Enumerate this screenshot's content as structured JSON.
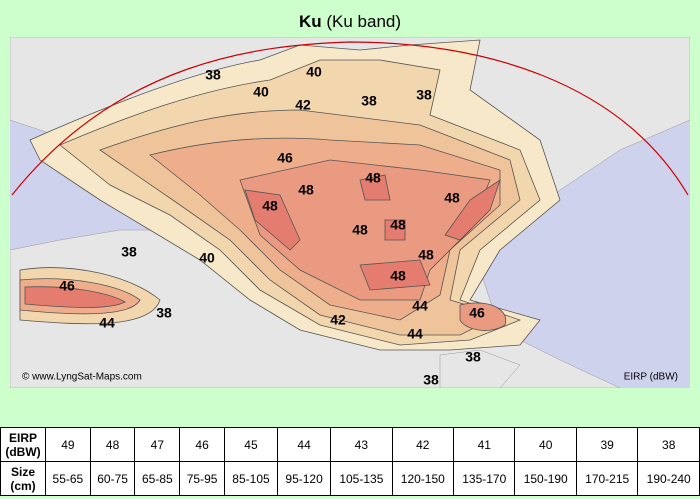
{
  "header": {
    "title_bold": "Ku",
    "title_rest": "(Ku band)"
  },
  "map": {
    "contour_labels": [
      "38",
      "40",
      "40",
      "42",
      "38",
      "38",
      "46",
      "48",
      "48",
      "48",
      "48",
      "48",
      "48",
      "48",
      "48",
      "38",
      "40",
      "46",
      "38",
      "44",
      "44",
      "46",
      "42",
      "44",
      "38",
      "38"
    ],
    "credit": "© www.LyngSat-Maps.com",
    "legend_label": "EIRP (dBW)"
  },
  "table": {
    "rows": [
      [
        "EIRP (dBW)",
        "49",
        "48",
        "47",
        "46",
        "45",
        "44",
        "43",
        "42",
        "41",
        "40",
        "39",
        "38"
      ],
      [
        "Size (cm)",
        "55-65",
        "60-75",
        "65-85",
        "75-95",
        "85-105",
        "95-120",
        "105-135",
        "120-150",
        "135-170",
        "150-190",
        "170-215",
        "190-240"
      ]
    ]
  }
}
